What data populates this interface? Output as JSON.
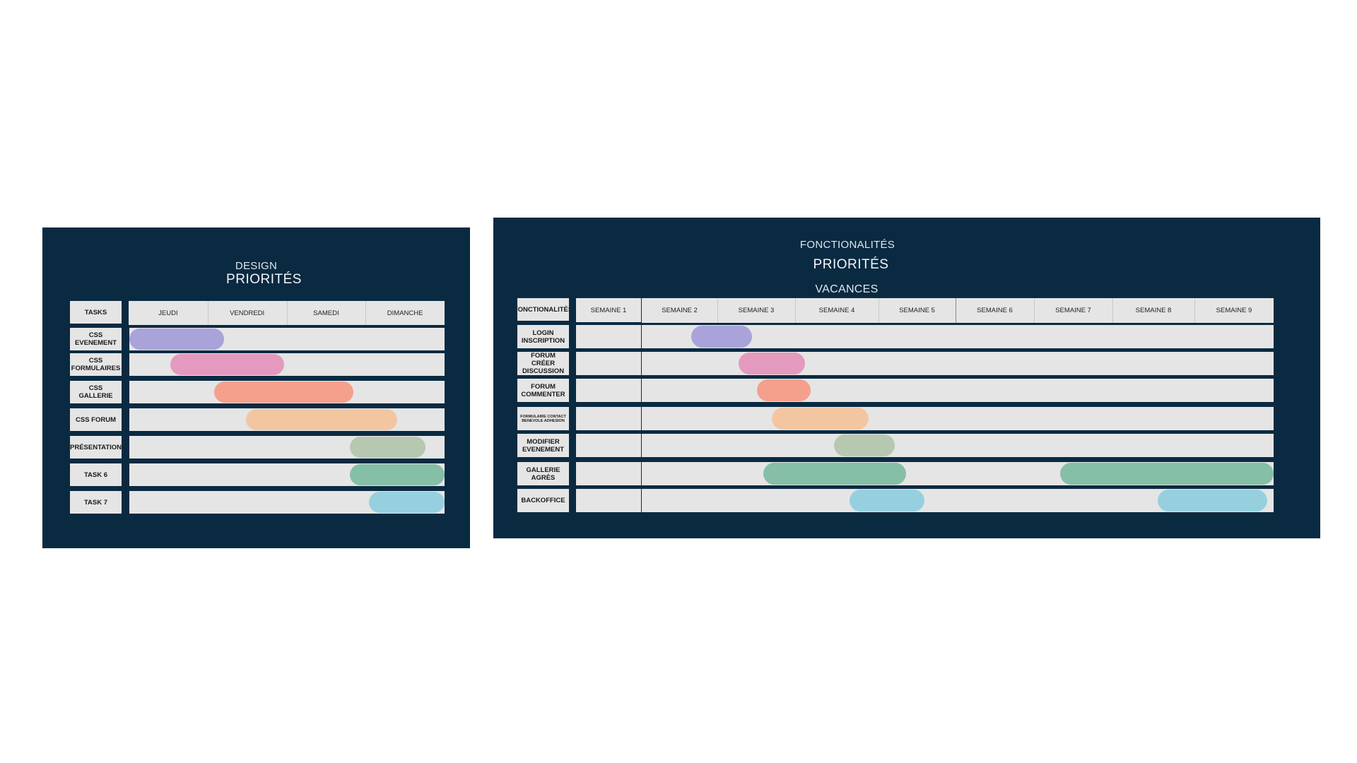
{
  "design": {
    "subtitle": "DESIGN",
    "title": "PRIORITÉS",
    "corner_label": "TASKS",
    "days": [
      "JEUDI",
      "VENDREDI",
      "SAMEDI",
      "DIMANCHE"
    ],
    "tasks": [
      {
        "label": "CSS EVENEMENT",
        "color": "#a9a3d9",
        "start": 0.0,
        "end": 0.3
      },
      {
        "label": "CSS FORMULAIRES",
        "color": "#e49abe",
        "start": 0.13,
        "end": 0.49
      },
      {
        "label": "CSS GALLERIE",
        "color": "#f4a08d",
        "start": 0.27,
        "end": 0.71
      },
      {
        "label": "CSS FORUM",
        "color": "#f3c6a2",
        "start": 0.37,
        "end": 0.85
      },
      {
        "label": "PRÉSENTATION",
        "color": "#b6c9b0",
        "start": 0.7,
        "end": 0.94
      },
      {
        "label": "TASK 6",
        "color": "#85bfa7",
        "start": 0.7,
        "end": 1.0
      },
      {
        "label": "TASK 7",
        "color": "#96d0df",
        "start": 0.76,
        "end": 1.0
      }
    ]
  },
  "fonctionalites": {
    "subtitle": "FONCTIONALITÉS",
    "title": "PRIORITÉS",
    "vacances_label": "VACANCES",
    "corner_label": "FONCTIONALITÉS",
    "week1": "SEMAINE 1",
    "weeks": [
      "SEMAINE 2",
      "SEMAINE 3",
      "SEMAINE 4",
      "SEMAINE 5",
      "SEMAINE 6",
      "SEMAINE 7",
      "SEMAINE 8",
      "SEMAINE 9"
    ],
    "features": [
      {
        "label": "LOGIN INSCRIPTION",
        "bars": [
          {
            "color": "#a9a3d9",
            "start": 0.65,
            "end": 1.45
          }
        ]
      },
      {
        "label": "FORUM CRÉER DISCUSSION",
        "bars": [
          {
            "color": "#e49abe",
            "start": 1.27,
            "end": 2.12
          }
        ]
      },
      {
        "label": "FORUM COMMENTER",
        "bars": [
          {
            "color": "#f4a08d",
            "start": 1.51,
            "end": 2.19
          }
        ]
      },
      {
        "label": "FORMULAIRE CONTACT BENEVOLE ADHESION",
        "tiny": true,
        "bars": [
          {
            "color": "#f3c6a2",
            "start": 1.7,
            "end": 2.88
          }
        ]
      },
      {
        "label": "MODIFIER EVENEMENT",
        "bars": [
          {
            "color": "#b6c9b0",
            "start": 2.47,
            "end": 3.21
          }
        ]
      },
      {
        "label": "GALLERIE AGRÈS",
        "bars": [
          {
            "color": "#85bfa7",
            "start": 1.59,
            "end": 3.36
          },
          {
            "color": "#85bfa7",
            "start": 5.33,
            "end": 8.0
          }
        ]
      },
      {
        "label": "BACKOFFICE",
        "bars": [
          {
            "color": "#96d0df",
            "start": 2.65,
            "end": 3.6
          },
          {
            "color": "#96d0df",
            "start": 6.55,
            "end": 7.92
          }
        ]
      }
    ]
  }
}
